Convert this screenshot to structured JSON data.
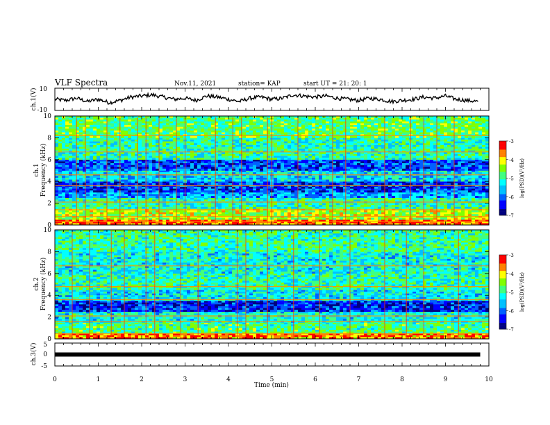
{
  "header": {
    "title": "VLF Spectra",
    "date": "Nov.11, 2021",
    "station": "station= KAP",
    "start": "start  UT =   21: 20: 1"
  },
  "colorbar": {
    "label": "log(PSD)(V²/Hz)",
    "ticks": [
      "-3",
      "-4",
      "-5",
      "-6",
      "-7"
    ],
    "colormap": [
      "#000080",
      "#0000ff",
      "#0060ff",
      "#00c0ff",
      "#00ffff",
      "#40ff80",
      "#80ff00",
      "#ffff00",
      "#ff8000",
      "#ff0000",
      "#ffffff"
    ]
  },
  "chart_data": [
    {
      "type": "line",
      "ylabel": "ch.1(V)",
      "ylim": [
        -10,
        10
      ],
      "yticks": [
        "10",
        "-10"
      ],
      "xlim": [
        0,
        10
      ],
      "series": [
        {
          "color": "#000000",
          "x": [
            0,
            0.25,
            0.5,
            0.75,
            1.0,
            1.25,
            1.5,
            1.75,
            2.0,
            2.25,
            2.5,
            2.75,
            3.0,
            3.25,
            3.5,
            3.75,
            4.0,
            4.25,
            4.5,
            4.75,
            5.0,
            5.25,
            5.5,
            5.75,
            6.0,
            6.25,
            6.5,
            6.75,
            7.0,
            7.25,
            7.5,
            7.75,
            8.0,
            8.25,
            8.5,
            8.75,
            9.0,
            9.25,
            9.5,
            9.75
          ],
          "y": [
            0,
            -1,
            1,
            -2,
            0,
            -3,
            -1,
            2,
            3,
            4,
            2,
            0,
            1,
            -1,
            3,
            2,
            0,
            -2,
            1,
            2,
            0,
            1,
            4,
            3,
            2,
            3,
            1,
            0,
            -1,
            1,
            0,
            -2,
            -1,
            0,
            2,
            1,
            3,
            0,
            -1,
            -2
          ]
        }
      ]
    },
    {
      "type": "heatmap",
      "ylabel": "ch.1\nFrequency (kHz)",
      "ylim": [
        0,
        10
      ],
      "yticks": [
        "0",
        "2",
        "4",
        "6",
        "8",
        "10"
      ],
      "xlim": [
        0,
        10
      ],
      "zlim": [
        -7,
        -3
      ],
      "bands": [
        {
          "f": [
            0,
            0.5
          ],
          "level": -3.5
        },
        {
          "f": [
            0.5,
            1.5
          ],
          "level": -4.3
        },
        {
          "f": [
            1.5,
            2.5
          ],
          "level": -5.0
        },
        {
          "f": [
            2.5,
            3.0
          ],
          "level": -5.7
        },
        {
          "f": [
            3.0,
            4.0
          ],
          "level": -6.2
        },
        {
          "f": [
            4.0,
            5.0
          ],
          "level": -5.4
        },
        {
          "f": [
            5.0,
            6.0
          ],
          "level": -6.1
        },
        {
          "f": [
            6.0,
            8.0
          ],
          "level": -5.0
        },
        {
          "f": [
            8.0,
            10.0
          ],
          "level": -4.7
        }
      ],
      "lines_khz": [
        0.3,
        0.8,
        1.4,
        2.1,
        3.6,
        4.6,
        6.7,
        8.2
      ],
      "spikes_min": [
        0.5,
        0.7,
        1.2,
        1.5,
        1.9,
        2.1,
        2.4,
        2.8,
        3.0,
        3.7,
        4.1,
        4.3,
        4.9,
        5.0,
        5.6,
        6.4,
        6.7,
        7.6,
        8.2,
        8.5,
        8.8,
        9.2
      ]
    },
    {
      "type": "heatmap",
      "ylabel": "ch.2\nFrequency (kHz)",
      "ylim": [
        0,
        10
      ],
      "yticks": [
        "0",
        "2",
        "4",
        "6",
        "8",
        "10"
      ],
      "xlim": [
        0,
        10
      ],
      "zlim": [
        -7,
        -3
      ],
      "bands": [
        {
          "f": [
            0,
            0.5
          ],
          "level": -3.6
        },
        {
          "f": [
            0.5,
            1.5
          ],
          "level": -4.8
        },
        {
          "f": [
            1.5,
            2.5
          ],
          "level": -5.2
        },
        {
          "f": [
            2.5,
            3.5
          ],
          "level": -6.3
        },
        {
          "f": [
            3.5,
            4.5
          ],
          "level": -5.3
        },
        {
          "f": [
            4.5,
            6.0
          ],
          "level": -5.0
        },
        {
          "f": [
            6.0,
            8.0
          ],
          "level": -5.2
        },
        {
          "f": [
            8.0,
            10.0
          ],
          "level": -4.9
        }
      ],
      "lines_khz": [
        0.5,
        1.6,
        2.1,
        3.6,
        4.8,
        6.7
      ],
      "spikes_min": [
        0.4,
        0.8,
        1.3,
        1.6,
        2.1,
        2.3,
        2.9,
        3.3,
        4.2,
        4.4,
        4.9,
        5.5,
        6.1,
        6.8,
        7.6,
        8.1,
        8.5,
        9.3
      ]
    },
    {
      "type": "line",
      "ylabel": "ch.3(V)",
      "ylim": [
        -5,
        5
      ],
      "yticks": [
        "5",
        "0",
        "-5"
      ],
      "xlim": [
        0,
        10
      ],
      "xlabel": "Time  (min)",
      "xticks": [
        "0",
        "1",
        "2",
        "3",
        "4",
        "5",
        "6",
        "7",
        "8",
        "9",
        "10"
      ],
      "series": [
        {
          "color": "#000000",
          "x": [
            0,
            9.8
          ],
          "y": [
            0,
            0
          ]
        }
      ]
    }
  ]
}
